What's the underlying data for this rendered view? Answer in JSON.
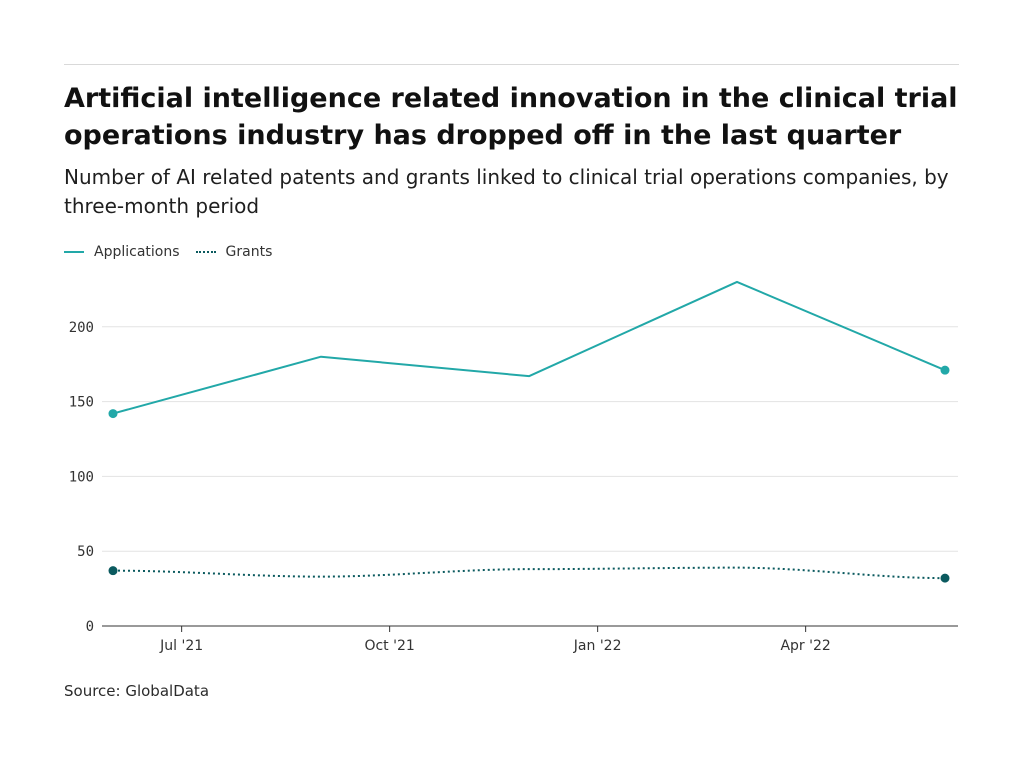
{
  "title": "Artificial intelligence related innovation in the clinical trial operations industry has dropped off in the last quarter",
  "subtitle": "Number of AI related patents and grants linked to clinical trial operations companies, by three-month period",
  "source": "Source: GlobalData",
  "colors": {
    "applications": "#22a8a8",
    "grants": "#0b5a5f"
  },
  "chart_data": {
    "type": "line",
    "x": [
      "Jun 2021",
      "Sep 2021",
      "Dec 2021",
      "Mar 2022",
      "Jun 2022"
    ],
    "x_tick_labels": [
      {
        "label": "Jul '21",
        "position": 0.33
      },
      {
        "label": "Oct '21",
        "position": 1.33
      },
      {
        "label": "Jan '22",
        "position": 2.33
      },
      {
        "label": "Apr '22",
        "position": 3.33
      }
    ],
    "series": [
      {
        "name": "Applications",
        "style": "solid",
        "values": [
          142,
          180,
          167,
          230,
          171
        ]
      },
      {
        "name": "Grants",
        "style": "dotted",
        "values": [
          37,
          33,
          38,
          39,
          32
        ]
      }
    ],
    "ylim": [
      0,
      230
    ],
    "y_ticks": [
      0,
      50,
      100,
      150,
      200
    ],
    "grid": true,
    "legend_position": "top-left",
    "xlabel": "",
    "ylabel": ""
  }
}
